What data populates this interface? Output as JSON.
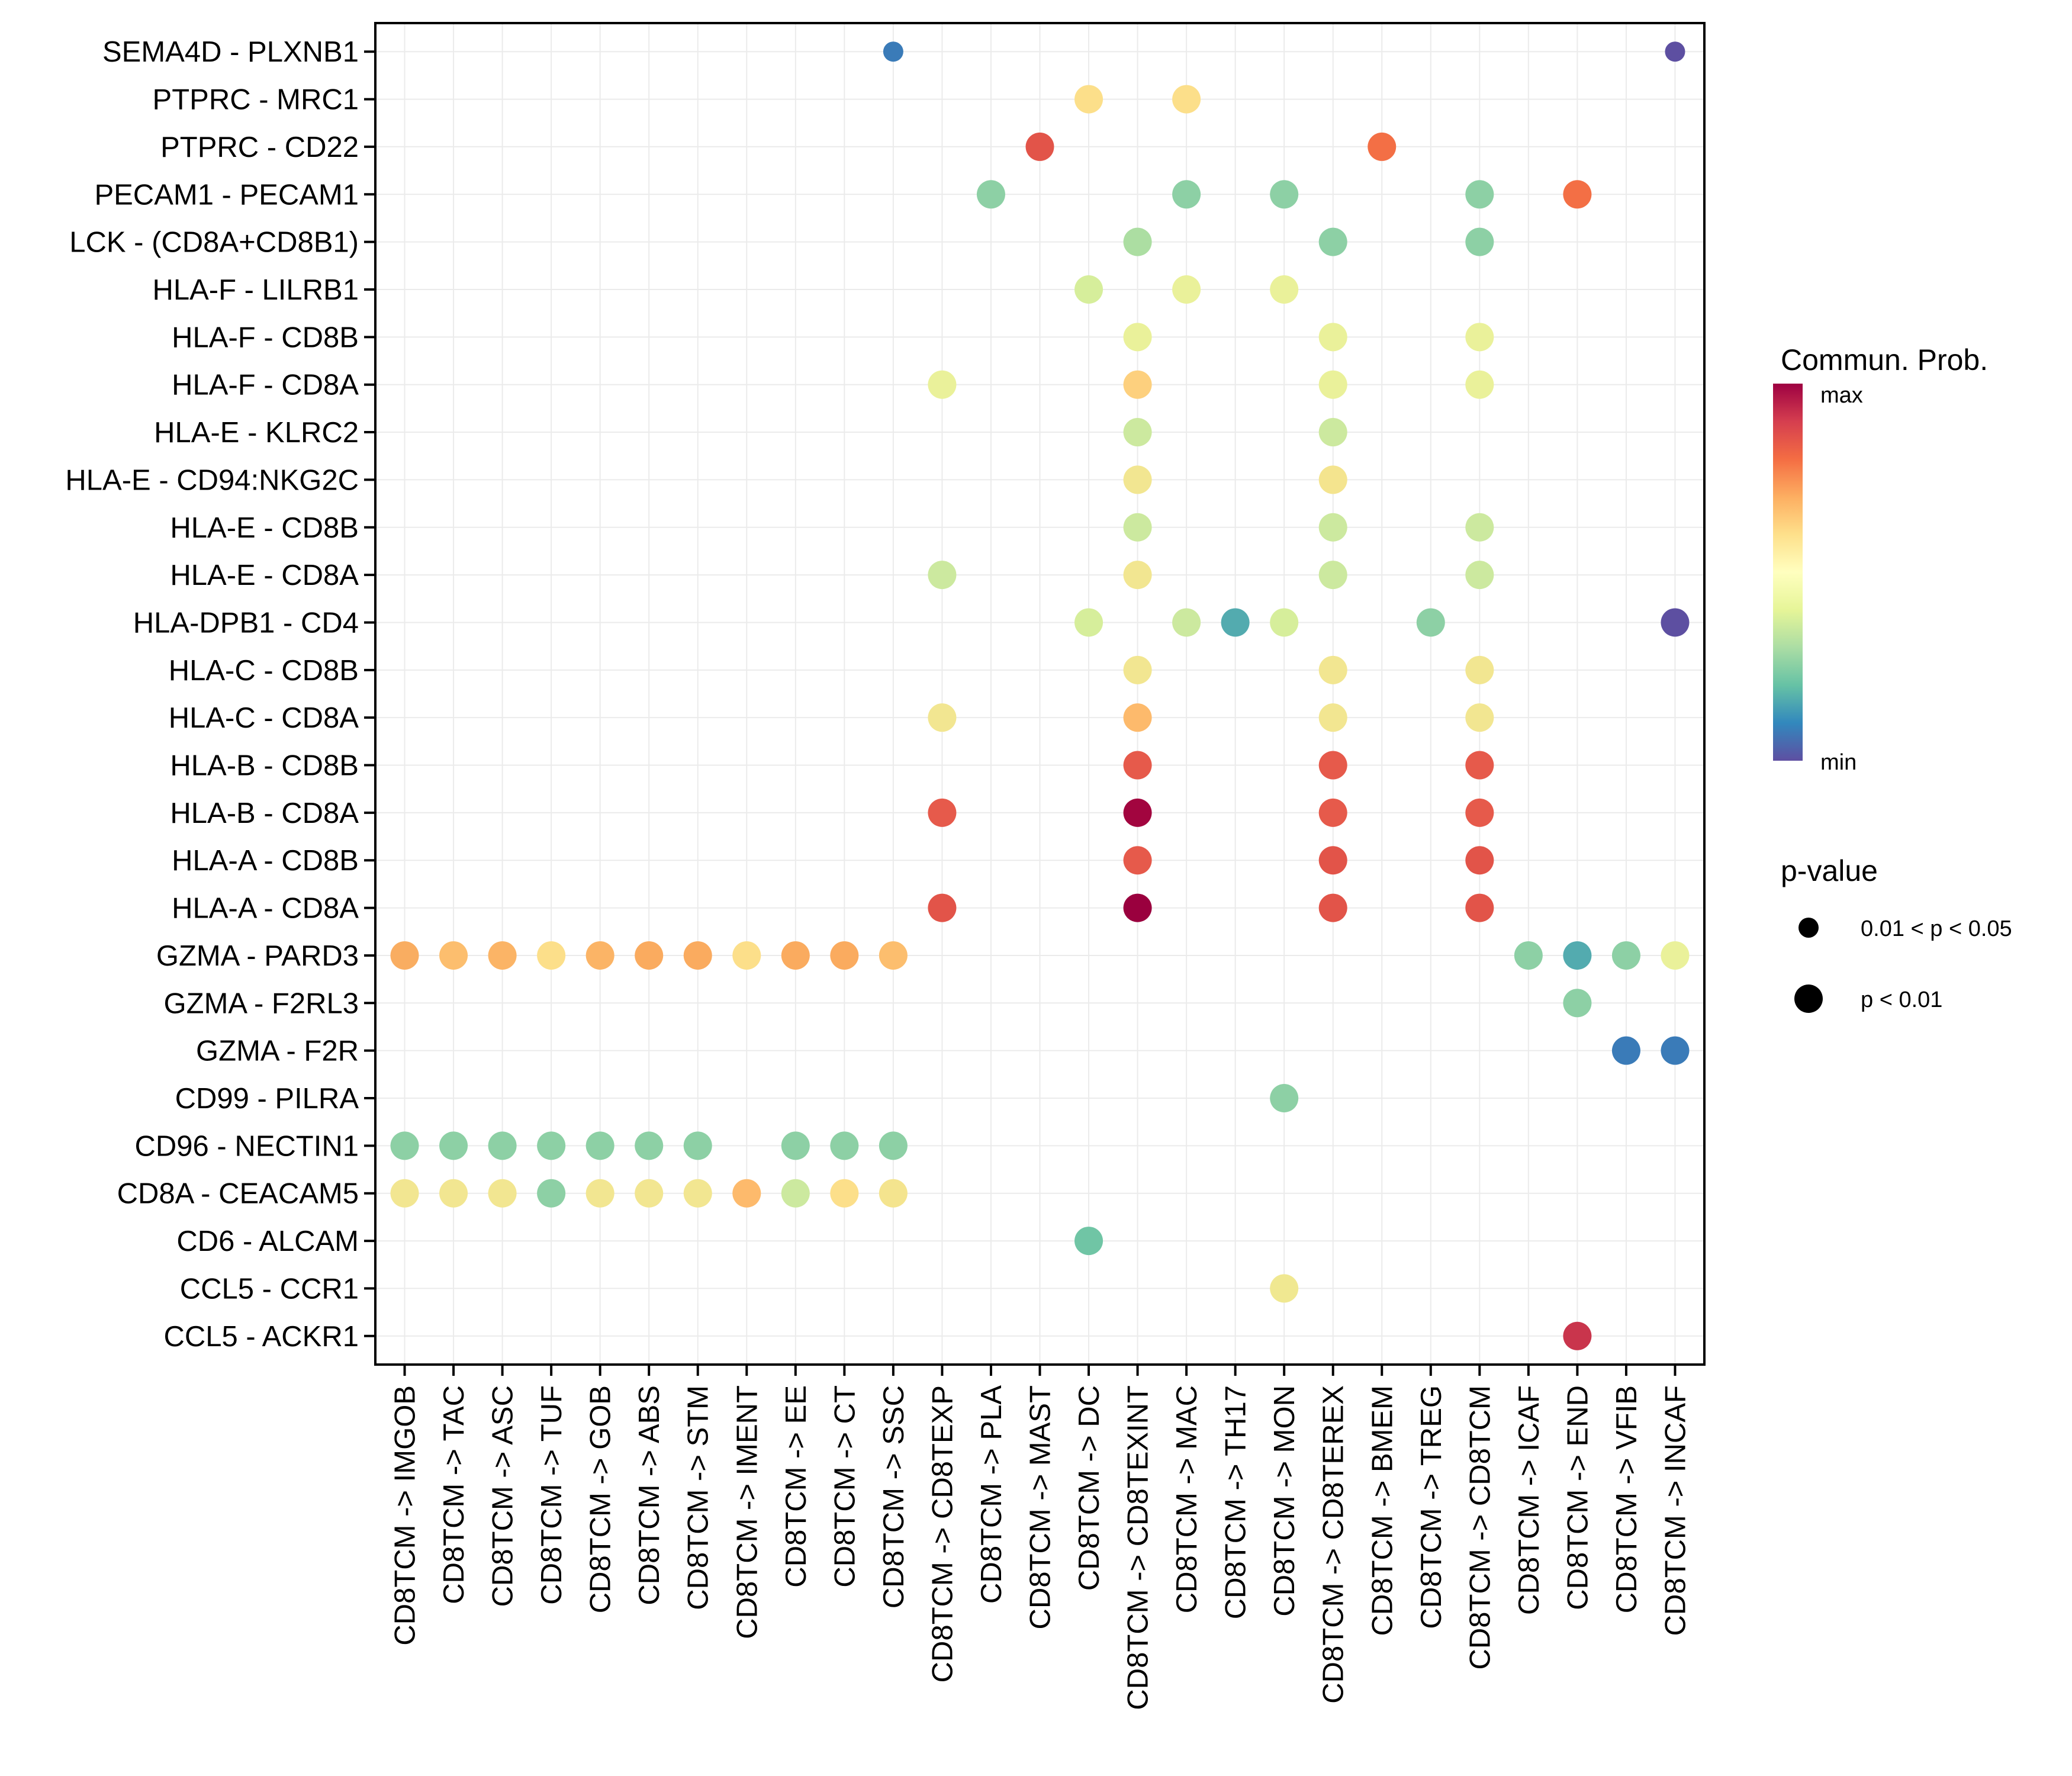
{
  "chart_data": {
    "type": "scatter",
    "subtype": "dot-plot",
    "title": "",
    "xlabel": "",
    "ylabel": "",
    "grid": true,
    "legend_position": "right",
    "x_categories": [
      "CD8TCM -> IMGOB",
      "CD8TCM -> TAC",
      "CD8TCM -> ASC",
      "CD8TCM -> TUF",
      "CD8TCM -> GOB",
      "CD8TCM -> ABS",
      "CD8TCM -> STM",
      "CD8TCM -> IMENT",
      "CD8TCM -> EE",
      "CD8TCM -> CT",
      "CD8TCM -> SSC",
      "CD8TCM -> CD8TEXP",
      "CD8TCM -> PLA",
      "CD8TCM -> MAST",
      "CD8TCM -> DC",
      "CD8TCM -> CD8TEXINT",
      "CD8TCM -> MAC",
      "CD8TCM -> TH17",
      "CD8TCM -> MON",
      "CD8TCM -> CD8TEREX",
      "CD8TCM -> BMEM",
      "CD8TCM -> TREG",
      "CD8TCM -> CD8TCM",
      "CD8TCM -> ICAF",
      "CD8TCM -> END",
      "CD8TCM -> VFIB",
      "CD8TCM -> INCAF"
    ],
    "y_categories": [
      "SEMA4D - PLXNB1",
      "PTPRC - MRC1",
      "PTPRC - CD22",
      "PECAM1 - PECAM1",
      "LCK - (CD8A+CD8B1)",
      "HLA-F - LILRB1",
      "HLA-F - CD8B",
      "HLA-F - CD8A",
      "HLA-E - KLRC2",
      "HLA-E - CD94:NKG2C",
      "HLA-E - CD8B",
      "HLA-E - CD8A",
      "HLA-DPB1 - CD4",
      "HLA-C - CD8B",
      "HLA-C - CD8A",
      "HLA-B - CD8B",
      "HLA-B - CD8A",
      "HLA-A - CD8B",
      "HLA-A - CD8A",
      "GZMA - PARD3",
      "GZMA - F2RL3",
      "GZMA - F2R",
      "CD99 - PILRA",
      "CD96 - NECTIN1",
      "CD8A - CEACAM5",
      "CD6 - ALCAM",
      "CCL5 - CCR1",
      "CCL5 - ACKR1"
    ],
    "color_scale": {
      "title": "Commun. Prob.",
      "max_label": "max",
      "min_label": "min",
      "range": [
        0,
        1
      ],
      "palette": [
        "#5E4FA2",
        "#3288BD",
        "#66C2A5",
        "#ABDDA4",
        "#E6F598",
        "#FFFFBF",
        "#FEE08B",
        "#FDAE61",
        "#F46D43",
        "#D53E4F",
        "#9E0142"
      ]
    },
    "size_legend": {
      "title": "p-value",
      "levels": [
        {
          "key": "mid",
          "label": "0.01 < p < 0.05"
        },
        {
          "key": "low",
          "label": "p < 0.01"
        }
      ]
    },
    "points": [
      {
        "y": 0,
        "x": 10,
        "prob": 0.1,
        "color": "#3A7BB8",
        "pval": "mid"
      },
      {
        "y": 0,
        "x": 26,
        "prob": 0.0,
        "color": "#5D4FA1",
        "pval": "mid"
      },
      {
        "y": 1,
        "x": 14,
        "prob": 0.55,
        "color": "#FCDF8A",
        "pval": "low"
      },
      {
        "y": 1,
        "x": 16,
        "prob": 0.55,
        "color": "#FCDF8A",
        "pval": "low"
      },
      {
        "y": 2,
        "x": 13,
        "prob": 0.82,
        "color": "#E25449",
        "pval": "low"
      },
      {
        "y": 2,
        "x": 20,
        "prob": 0.75,
        "color": "#F36F45",
        "pval": "low"
      },
      {
        "y": 3,
        "x": 12,
        "prob": 0.3,
        "color": "#8DD0A5",
        "pval": "low"
      },
      {
        "y": 3,
        "x": 16,
        "prob": 0.3,
        "color": "#8DD0A5",
        "pval": "low"
      },
      {
        "y": 3,
        "x": 18,
        "prob": 0.3,
        "color": "#8DD0A5",
        "pval": "low"
      },
      {
        "y": 3,
        "x": 22,
        "prob": 0.3,
        "color": "#8DD0A5",
        "pval": "low"
      },
      {
        "y": 3,
        "x": 24,
        "prob": 0.75,
        "color": "#F36F45",
        "pval": "low"
      },
      {
        "y": 4,
        "x": 15,
        "prob": 0.36,
        "color": "#ACDEA2",
        "pval": "low"
      },
      {
        "y": 4,
        "x": 19,
        "prob": 0.3,
        "color": "#8DD0A5",
        "pval": "low"
      },
      {
        "y": 4,
        "x": 22,
        "prob": 0.3,
        "color": "#8DD0A5",
        "pval": "low"
      },
      {
        "y": 5,
        "x": 14,
        "prob": 0.42,
        "color": "#D6EE9B",
        "pval": "low"
      },
      {
        "y": 5,
        "x": 16,
        "prob": 0.46,
        "color": "#EAF19A",
        "pval": "low"
      },
      {
        "y": 5,
        "x": 18,
        "prob": 0.46,
        "color": "#EAF19A",
        "pval": "low"
      },
      {
        "y": 6,
        "x": 15,
        "prob": 0.46,
        "color": "#EAF19A",
        "pval": "low"
      },
      {
        "y": 6,
        "x": 19,
        "prob": 0.46,
        "color": "#EAF19A",
        "pval": "low"
      },
      {
        "y": 6,
        "x": 22,
        "prob": 0.46,
        "color": "#EAF19A",
        "pval": "low"
      },
      {
        "y": 7,
        "x": 11,
        "prob": 0.46,
        "color": "#EAF19A",
        "pval": "low"
      },
      {
        "y": 7,
        "x": 15,
        "prob": 0.6,
        "color": "#FDD07E",
        "pval": "low"
      },
      {
        "y": 7,
        "x": 19,
        "prob": 0.46,
        "color": "#EAF19A",
        "pval": "low"
      },
      {
        "y": 7,
        "x": 22,
        "prob": 0.46,
        "color": "#EAF19A",
        "pval": "low"
      },
      {
        "y": 8,
        "x": 15,
        "prob": 0.4,
        "color": "#CCE99F",
        "pval": "low"
      },
      {
        "y": 8,
        "x": 19,
        "prob": 0.4,
        "color": "#CCE99F",
        "pval": "low"
      },
      {
        "y": 9,
        "x": 15,
        "prob": 0.5,
        "color": "#F2E691",
        "pval": "low"
      },
      {
        "y": 9,
        "x": 19,
        "prob": 0.52,
        "color": "#F4E48E",
        "pval": "low"
      },
      {
        "y": 10,
        "x": 15,
        "prob": 0.4,
        "color": "#CCE99F",
        "pval": "low"
      },
      {
        "y": 10,
        "x": 19,
        "prob": 0.4,
        "color": "#CCE99F",
        "pval": "low"
      },
      {
        "y": 10,
        "x": 22,
        "prob": 0.4,
        "color": "#CCE99F",
        "pval": "low"
      },
      {
        "y": 11,
        "x": 11,
        "prob": 0.4,
        "color": "#CCE99F",
        "pval": "low"
      },
      {
        "y": 11,
        "x": 15,
        "prob": 0.5,
        "color": "#F2E691",
        "pval": "low"
      },
      {
        "y": 11,
        "x": 19,
        "prob": 0.4,
        "color": "#CCE99F",
        "pval": "low"
      },
      {
        "y": 11,
        "x": 22,
        "prob": 0.4,
        "color": "#CCE99F",
        "pval": "low"
      },
      {
        "y": 12,
        "x": 14,
        "prob": 0.42,
        "color": "#D6EE9B",
        "pval": "low"
      },
      {
        "y": 12,
        "x": 16,
        "prob": 0.4,
        "color": "#CCE99F",
        "pval": "low"
      },
      {
        "y": 12,
        "x": 17,
        "prob": 0.2,
        "color": "#53ABAF",
        "pval": "low"
      },
      {
        "y": 12,
        "x": 18,
        "prob": 0.42,
        "color": "#D6EE9B",
        "pval": "low"
      },
      {
        "y": 12,
        "x": 21,
        "prob": 0.3,
        "color": "#8DD0A5",
        "pval": "low"
      },
      {
        "y": 12,
        "x": 26,
        "prob": 0.0,
        "color": "#5D4FA1",
        "pval": "low"
      },
      {
        "y": 13,
        "x": 15,
        "prob": 0.5,
        "color": "#F2E691",
        "pval": "low"
      },
      {
        "y": 13,
        "x": 19,
        "prob": 0.5,
        "color": "#F2E691",
        "pval": "low"
      },
      {
        "y": 13,
        "x": 22,
        "prob": 0.5,
        "color": "#F2E691",
        "pval": "low"
      },
      {
        "y": 14,
        "x": 11,
        "prob": 0.5,
        "color": "#F2E691",
        "pval": "low"
      },
      {
        "y": 14,
        "x": 15,
        "prob": 0.64,
        "color": "#FDBA6C",
        "pval": "low"
      },
      {
        "y": 14,
        "x": 19,
        "prob": 0.5,
        "color": "#F2E691",
        "pval": "low"
      },
      {
        "y": 14,
        "x": 22,
        "prob": 0.5,
        "color": "#F2E691",
        "pval": "low"
      },
      {
        "y": 15,
        "x": 15,
        "prob": 0.8,
        "color": "#E65A4B",
        "pval": "low"
      },
      {
        "y": 15,
        "x": 19,
        "prob": 0.8,
        "color": "#E65A4B",
        "pval": "low"
      },
      {
        "y": 15,
        "x": 22,
        "prob": 0.8,
        "color": "#E65A4B",
        "pval": "low"
      },
      {
        "y": 16,
        "x": 11,
        "prob": 0.8,
        "color": "#E65A4B",
        "pval": "low"
      },
      {
        "y": 16,
        "x": 15,
        "prob": 0.98,
        "color": "#A2053F",
        "pval": "low"
      },
      {
        "y": 16,
        "x": 19,
        "prob": 0.8,
        "color": "#E65A4B",
        "pval": "low"
      },
      {
        "y": 16,
        "x": 22,
        "prob": 0.8,
        "color": "#E65A4B",
        "pval": "low"
      },
      {
        "y": 17,
        "x": 15,
        "prob": 0.8,
        "color": "#E65A4B",
        "pval": "low"
      },
      {
        "y": 17,
        "x": 19,
        "prob": 0.82,
        "color": "#E25449",
        "pval": "low"
      },
      {
        "y": 17,
        "x": 22,
        "prob": 0.82,
        "color": "#E25449",
        "pval": "low"
      },
      {
        "y": 18,
        "x": 11,
        "prob": 0.82,
        "color": "#E25449",
        "pval": "low"
      },
      {
        "y": 18,
        "x": 15,
        "prob": 1.0,
        "color": "#9A003E",
        "pval": "low"
      },
      {
        "y": 18,
        "x": 19,
        "prob": 0.82,
        "color": "#E25449",
        "pval": "low"
      },
      {
        "y": 18,
        "x": 22,
        "prob": 0.82,
        "color": "#E25449",
        "pval": "low"
      },
      {
        "y": 19,
        "x": 0,
        "prob": 0.66,
        "color": "#F9AD61",
        "pval": "low"
      },
      {
        "y": 19,
        "x": 1,
        "prob": 0.63,
        "color": "#FCBE6E",
        "pval": "low"
      },
      {
        "y": 19,
        "x": 2,
        "prob": 0.65,
        "color": "#FBB466",
        "pval": "low"
      },
      {
        "y": 19,
        "x": 3,
        "prob": 0.55,
        "color": "#FCDF8A",
        "pval": "low"
      },
      {
        "y": 19,
        "x": 4,
        "prob": 0.65,
        "color": "#FBB466",
        "pval": "low"
      },
      {
        "y": 19,
        "x": 5,
        "prob": 0.68,
        "color": "#FAAB5F",
        "pval": "low"
      },
      {
        "y": 19,
        "x": 6,
        "prob": 0.68,
        "color": "#FAAB5F",
        "pval": "low"
      },
      {
        "y": 19,
        "x": 7,
        "prob": 0.55,
        "color": "#FCDF8A",
        "pval": "low"
      },
      {
        "y": 19,
        "x": 8,
        "prob": 0.68,
        "color": "#FAAB5F",
        "pval": "low"
      },
      {
        "y": 19,
        "x": 9,
        "prob": 0.68,
        "color": "#FAAB5F",
        "pval": "low"
      },
      {
        "y": 19,
        "x": 10,
        "prob": 0.63,
        "color": "#FCBE6E",
        "pval": "low"
      },
      {
        "y": 19,
        "x": 23,
        "prob": 0.3,
        "color": "#8DD0A5",
        "pval": "low"
      },
      {
        "y": 19,
        "x": 24,
        "prob": 0.2,
        "color": "#53ABAF",
        "pval": "low"
      },
      {
        "y": 19,
        "x": 25,
        "prob": 0.3,
        "color": "#8DD0A5",
        "pval": "low"
      },
      {
        "y": 19,
        "x": 26,
        "prob": 0.46,
        "color": "#EAF19A",
        "pval": "low"
      },
      {
        "y": 20,
        "x": 24,
        "prob": 0.3,
        "color": "#8DD0A5",
        "pval": "low"
      },
      {
        "y": 21,
        "x": 25,
        "prob": 0.1,
        "color": "#3A7BB8",
        "pval": "low"
      },
      {
        "y": 21,
        "x": 26,
        "prob": 0.1,
        "color": "#3A7BB8",
        "pval": "low"
      },
      {
        "y": 22,
        "x": 18,
        "prob": 0.3,
        "color": "#8DD0A5",
        "pval": "low"
      },
      {
        "y": 23,
        "x": 0,
        "prob": 0.3,
        "color": "#8DD0A5",
        "pval": "low"
      },
      {
        "y": 23,
        "x": 1,
        "prob": 0.3,
        "color": "#8DD0A5",
        "pval": "low"
      },
      {
        "y": 23,
        "x": 2,
        "prob": 0.3,
        "color": "#8DD0A5",
        "pval": "low"
      },
      {
        "y": 23,
        "x": 3,
        "prob": 0.3,
        "color": "#8DD0A5",
        "pval": "low"
      },
      {
        "y": 23,
        "x": 4,
        "prob": 0.3,
        "color": "#8DD0A5",
        "pval": "low"
      },
      {
        "y": 23,
        "x": 5,
        "prob": 0.3,
        "color": "#8DD0A5",
        "pval": "low"
      },
      {
        "y": 23,
        "x": 6,
        "prob": 0.3,
        "color": "#8DD0A5",
        "pval": "low"
      },
      {
        "y": 23,
        "x": 8,
        "prob": 0.3,
        "color": "#8DD0A5",
        "pval": "low"
      },
      {
        "y": 23,
        "x": 9,
        "prob": 0.3,
        "color": "#8DD0A5",
        "pval": "low"
      },
      {
        "y": 23,
        "x": 10,
        "prob": 0.3,
        "color": "#8DD0A5",
        "pval": "low"
      },
      {
        "y": 24,
        "x": 0,
        "prob": 0.5,
        "color": "#F2E691",
        "pval": "low"
      },
      {
        "y": 24,
        "x": 1,
        "prob": 0.5,
        "color": "#F2E691",
        "pval": "low"
      },
      {
        "y": 24,
        "x": 2,
        "prob": 0.5,
        "color": "#F2E691",
        "pval": "low"
      },
      {
        "y": 24,
        "x": 3,
        "prob": 0.3,
        "color": "#8DD0A5",
        "pval": "low"
      },
      {
        "y": 24,
        "x": 4,
        "prob": 0.5,
        "color": "#F2E691",
        "pval": "low"
      },
      {
        "y": 24,
        "x": 5,
        "prob": 0.5,
        "color": "#F2E691",
        "pval": "low"
      },
      {
        "y": 24,
        "x": 6,
        "prob": 0.5,
        "color": "#F2E691",
        "pval": "low"
      },
      {
        "y": 24,
        "x": 7,
        "prob": 0.64,
        "color": "#FDBA6C",
        "pval": "low"
      },
      {
        "y": 24,
        "x": 8,
        "prob": 0.4,
        "color": "#CCE99F",
        "pval": "low"
      },
      {
        "y": 24,
        "x": 9,
        "prob": 0.55,
        "color": "#FCDF8A",
        "pval": "low"
      },
      {
        "y": 24,
        "x": 10,
        "prob": 0.52,
        "color": "#F4E48E",
        "pval": "low"
      },
      {
        "y": 25,
        "x": 14,
        "prob": 0.25,
        "color": "#70C5A5",
        "pval": "low"
      },
      {
        "y": 26,
        "x": 18,
        "prob": 0.5,
        "color": "#F0E891",
        "pval": "low"
      },
      {
        "y": 27,
        "x": 24,
        "prob": 0.88,
        "color": "#C9354C",
        "pval": "low"
      }
    ]
  }
}
